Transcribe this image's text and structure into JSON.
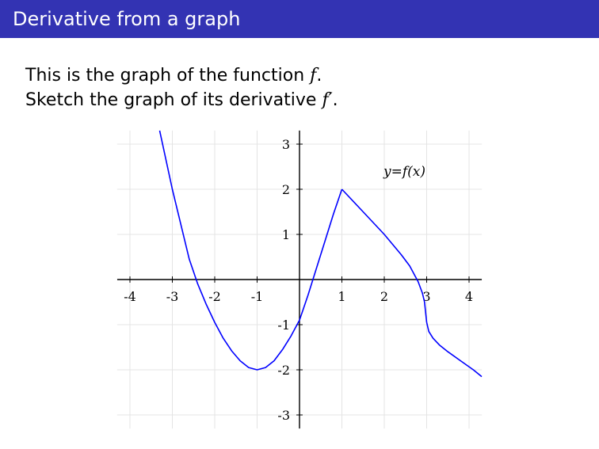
{
  "slide": {
    "title": "Derivative from a graph",
    "line1": {
      "prefix": "This is the graph of the function ",
      "func": "f",
      "suffix": "."
    },
    "line2": {
      "prefix": "Sketch the graph of its derivative ",
      "func": "f′",
      "suffix": "."
    }
  },
  "chart_data": {
    "type": "line",
    "title": "",
    "curve_label": "y=f(x)",
    "xlim": [
      -4.3,
      4.3
    ],
    "ylim": [
      -3.3,
      3.3
    ],
    "grid": true,
    "x_ticks": [
      -4,
      -3,
      -2,
      -1,
      1,
      2,
      3,
      4
    ],
    "y_ticks": [
      -3,
      -2,
      -1,
      1,
      2,
      3
    ],
    "x_tick_labels": [
      "-4",
      "-3",
      "-2",
      "-1",
      "1",
      "2",
      "3",
      "4"
    ],
    "y_tick_labels": [
      "-3",
      "-2",
      "-1",
      "1",
      "2",
      "3"
    ],
    "color": "#0000ff",
    "series": [
      {
        "x": [
          -3.3,
          -3.0,
          -2.6,
          -2.4,
          -2.2,
          -2.0,
          -1.8,
          -1.6,
          -1.4,
          -1.2,
          -1.0,
          -0.8,
          -0.6,
          -0.4,
          -0.2,
          0.0,
          0.2,
          0.4,
          0.6,
          0.8,
          1.0
        ],
        "y": [
          3.3,
          2.0,
          0.45,
          -0.1,
          -0.55,
          -0.95,
          -1.3,
          -1.58,
          -1.8,
          -1.95,
          -2.0,
          -1.95,
          -1.8,
          -1.55,
          -1.25,
          -0.9,
          -0.35,
          0.25,
          0.85,
          1.45,
          2.0
        ]
      },
      {
        "x": [
          1.0,
          1.5,
          2.0,
          2.4,
          2.6,
          2.8,
          2.9,
          2.95,
          3.0
        ],
        "y": [
          2.0,
          1.5,
          1.0,
          0.55,
          0.3,
          -0.05,
          -0.3,
          -0.5,
          -0.95
        ]
      },
      {
        "x": [
          3.0,
          3.05,
          3.15,
          3.3,
          3.5,
          3.8,
          4.1,
          4.3
        ],
        "y": [
          -0.95,
          -1.15,
          -1.3,
          -1.45,
          -1.6,
          -1.8,
          -2.0,
          -2.15
        ]
      }
    ]
  }
}
